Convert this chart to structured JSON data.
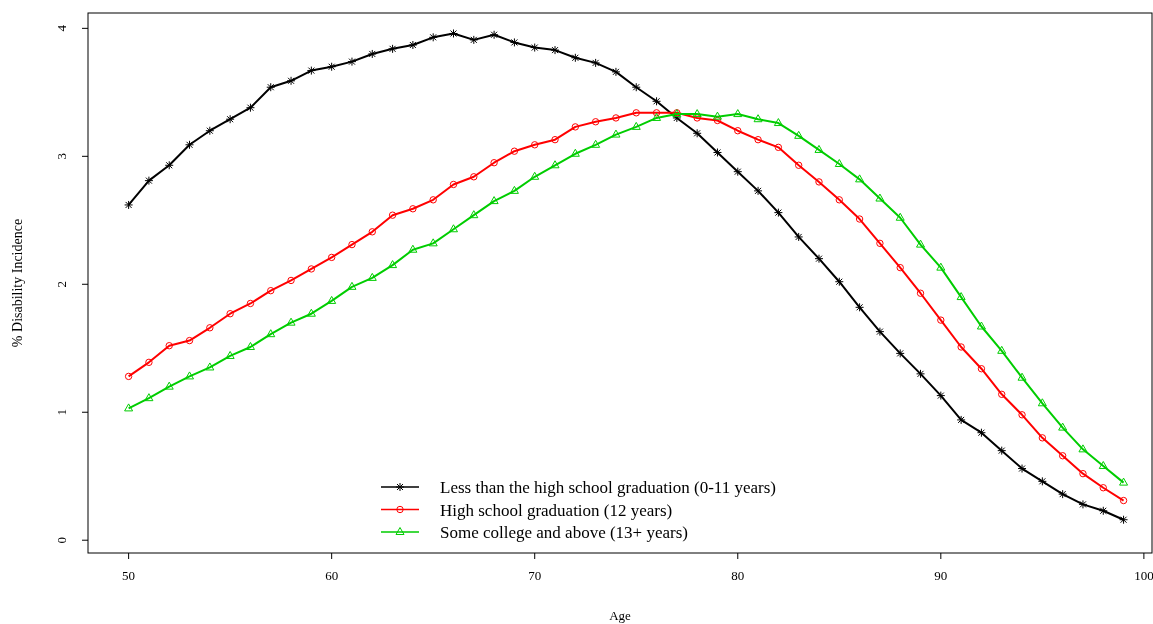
{
  "chart_data": {
    "type": "line",
    "xlabel": "Age",
    "ylabel": "% Disability Incidence",
    "x": [
      50,
      51,
      52,
      53,
      54,
      55,
      56,
      57,
      58,
      59,
      60,
      61,
      62,
      63,
      64,
      65,
      66,
      67,
      68,
      69,
      70,
      71,
      72,
      73,
      74,
      75,
      76,
      77,
      78,
      79,
      80,
      81,
      82,
      83,
      84,
      85,
      86,
      87,
      88,
      89,
      90,
      91,
      92,
      93,
      94,
      95,
      96,
      97,
      98,
      99
    ],
    "xlim": [
      48,
      100.4
    ],
    "ylim": [
      -0.1,
      4.12
    ],
    "xticks": [
      50,
      60,
      70,
      80,
      90,
      100
    ],
    "yticks": [
      0,
      1,
      2,
      3,
      4
    ],
    "grid": false,
    "legend": "bottom",
    "line_style": "solid",
    "series": [
      {
        "name": "Less than the high school graduation (0-11 years)",
        "color": "#000000",
        "marker": "cross",
        "values": [
          2.62,
          2.81,
          2.93,
          3.09,
          3.2,
          3.29,
          3.38,
          3.54,
          3.59,
          3.67,
          3.7,
          3.74,
          3.8,
          3.84,
          3.87,
          3.93,
          3.96,
          3.91,
          3.95,
          3.89,
          3.85,
          3.83,
          3.77,
          3.73,
          3.66,
          3.54,
          3.43,
          3.3,
          3.18,
          3.03,
          2.88,
          2.73,
          2.56,
          2.37,
          2.2,
          2.02,
          1.82,
          1.63,
          1.46,
          1.3,
          1.13,
          0.94,
          0.84,
          0.7,
          0.56,
          0.46,
          0.36,
          0.28,
          0.23,
          0.16
        ]
      },
      {
        "name": "High school graduation (12 years)",
        "color": "#ff0000",
        "marker": "circle",
        "values": [
          1.28,
          1.39,
          1.52,
          1.56,
          1.66,
          1.77,
          1.85,
          1.95,
          2.03,
          2.12,
          2.21,
          2.31,
          2.41,
          2.54,
          2.59,
          2.66,
          2.78,
          2.84,
          2.95,
          3.04,
          3.09,
          3.13,
          3.23,
          3.27,
          3.3,
          3.34,
          3.34,
          3.34,
          3.3,
          3.28,
          3.2,
          3.13,
          3.07,
          2.93,
          2.8,
          2.66,
          2.51,
          2.32,
          2.13,
          1.93,
          1.72,
          1.51,
          1.34,
          1.14,
          0.98,
          0.8,
          0.66,
          0.52,
          0.41,
          0.31
        ]
      },
      {
        "name": "Some college and above (13+ years)",
        "color": "#00cd00",
        "marker": "triangle",
        "values": [
          1.03,
          1.11,
          1.2,
          1.28,
          1.35,
          1.44,
          1.51,
          1.61,
          1.7,
          1.77,
          1.87,
          1.98,
          2.05,
          2.15,
          2.27,
          2.32,
          2.43,
          2.54,
          2.65,
          2.73,
          2.84,
          2.93,
          3.02,
          3.09,
          3.17,
          3.23,
          3.3,
          3.33,
          3.33,
          3.31,
          3.33,
          3.29,
          3.26,
          3.16,
          3.05,
          2.94,
          2.82,
          2.67,
          2.52,
          2.31,
          2.13,
          1.9,
          1.67,
          1.48,
          1.27,
          1.07,
          0.88,
          0.71,
          0.58,
          0.45
        ]
      }
    ]
  }
}
